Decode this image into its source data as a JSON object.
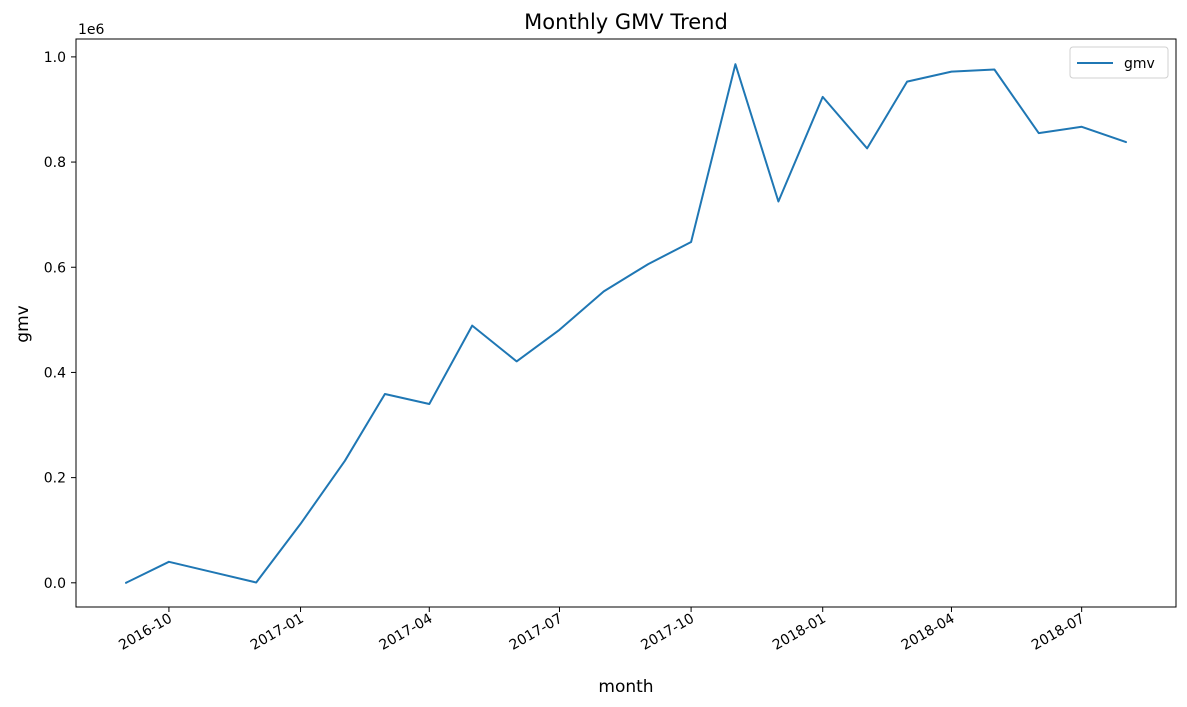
{
  "chart_data": {
    "type": "line",
    "title": "Monthly GMV Trend",
    "xlabel": "month",
    "ylabel": "gmv",
    "y_offset_label": "1e6",
    "y_scale_factor": 1000000,
    "x_tick_labels": [
      "2016-10",
      "2017-01",
      "2017-04",
      "2017-07",
      "2017-10",
      "2018-01",
      "2018-04",
      "2018-07"
    ],
    "y_tick_values": [
      0,
      0.2,
      0.4,
      0.6,
      0.8,
      1.0
    ],
    "y_tick_labels": [
      "0.0",
      "0.2",
      "0.4",
      "0.6",
      "0.8",
      "1.0"
    ],
    "ylim": [
      -46000,
      1034000
    ],
    "grid": false,
    "legend_position": "top-right",
    "series": [
      {
        "name": "gmv",
        "color": "#1f77b4",
        "x": [
          "2016-09",
          "2016-10",
          "2016-11",
          "2016-12",
          "2017-01",
          "2017-02",
          "2017-03",
          "2017-04",
          "2017-05",
          "2017-06",
          "2017-07",
          "2017-08",
          "2017-09",
          "2017-10",
          "2017-11",
          "2017-12",
          "2018-01",
          "2018-02",
          "2018-03",
          "2018-04",
          "2018-05",
          "2018-06",
          "2018-07",
          "2018-08"
        ],
        "values": [
          0,
          40000,
          20000,
          500,
          112000,
          232000,
          359000,
          340000,
          489000,
          421000,
          481000,
          554000,
          606000,
          648000,
          986000,
          725000,
          924000,
          826000,
          953000,
          972000,
          976000,
          855000,
          867000,
          838000
        ]
      }
    ]
  }
}
